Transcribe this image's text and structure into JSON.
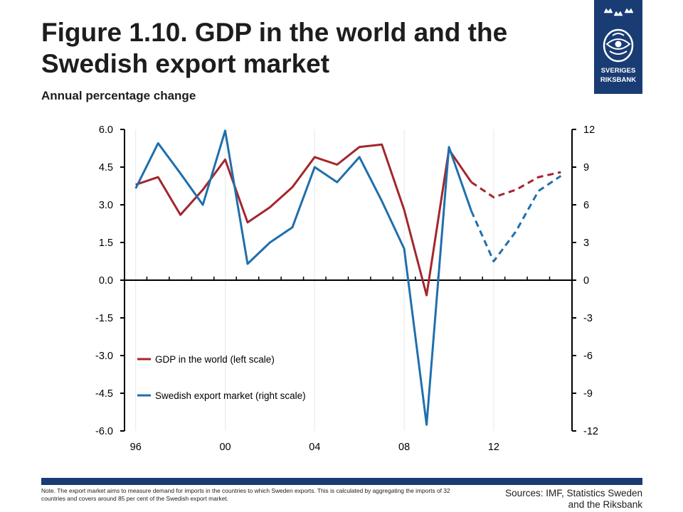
{
  "header": {
    "title": "Figure 1.10. GDP in the world and the Swedish export market",
    "subtitle": "Annual percentage change"
  },
  "logo": {
    "line1": "SVERIGES",
    "line2": "RIKSBANK",
    "color": "#1a3c74"
  },
  "chart_data": {
    "type": "line",
    "title": "Figure 1.10. GDP in the world and the Swedish export market",
    "subtitle": "Annual percentage change",
    "x": [
      1996,
      1997,
      1998,
      1999,
      2000,
      2001,
      2002,
      2003,
      2004,
      2005,
      2006,
      2007,
      2008,
      2009,
      2010,
      2011,
      2012,
      2013,
      2014,
      2015
    ],
    "x_ticks": [
      {
        "value": 1996,
        "label": "96"
      },
      {
        "value": 2000,
        "label": "00"
      },
      {
        "value": 2004,
        "label": "04"
      },
      {
        "value": 2008,
        "label": "08"
      },
      {
        "value": 2012,
        "label": "12"
      }
    ],
    "xlim": [
      1995.5,
      2015.5
    ],
    "left_axis": {
      "ylim": [
        -6,
        6
      ],
      "ticks": [
        6,
        4.5,
        3,
        1.5,
        0,
        -1.5,
        -3,
        -4.5,
        -6
      ],
      "tick_labels": [
        "6.0",
        "4.5",
        "3.0",
        "1.5",
        "0.0",
        "-1.5",
        "-3.0",
        "-4.5",
        "-6.0"
      ]
    },
    "right_axis": {
      "ylim": [
        -12,
        12
      ],
      "ticks": [
        12,
        9,
        6,
        3,
        0,
        -3,
        -6,
        -9,
        -12
      ],
      "tick_labels": [
        "12",
        "9",
        "6",
        "3",
        "0",
        "-3",
        "-6",
        "-9",
        "-12"
      ]
    },
    "forecast_start": 2011,
    "series": [
      {
        "name": "GDP in the world (left scale)",
        "axis": "left",
        "color": "#a3262e",
        "values": [
          3.8,
          4.1,
          2.6,
          3.6,
          4.8,
          2.3,
          2.9,
          3.7,
          4.9,
          4.6,
          5.3,
          5.4,
          2.8,
          -0.6,
          5.2,
          3.9,
          3.3,
          3.6,
          4.1,
          4.3
        ]
      },
      {
        "name": "Swedish export market (right scale)",
        "axis": "right",
        "color": "#1f6fad",
        "values": [
          7.3,
          10.9,
          8.5,
          6.0,
          11.9,
          1.3,
          3.0,
          4.2,
          9.0,
          7.8,
          9.8,
          6.3,
          2.5,
          -11.5,
          10.6,
          5.5,
          1.5,
          3.9,
          7.1,
          8.3
        ]
      }
    ],
    "legend_position": "lower-left",
    "grid": "vertical"
  },
  "footer": {
    "note": "Note. The export market aims to measure demand for imports in the countries to which Sweden exports. This is calculated by aggregating the imports of 32 countries and covers around 85 per cent of the Swedish export market.",
    "sources_line1": "Sources: IMF, Statistics Sweden",
    "sources_line2": "and the Riksbank"
  }
}
